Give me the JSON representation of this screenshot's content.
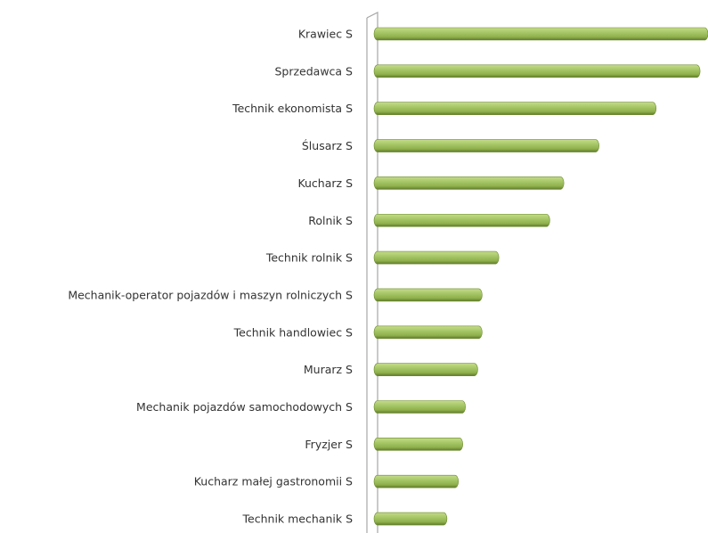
{
  "chart_data": {
    "type": "bar",
    "orientation": "horizontal",
    "categories": [
      "Krawiec S",
      "Sprzedawca S",
      "Technik ekonomista S",
      "Ślusarz S",
      "Kucharz S",
      "Rolnik S",
      "Technik rolnik S",
      "Mechanik-operator pojazdów i maszyn rolniczych S",
      "Technik handlowiec S",
      "Murarz S",
      "Mechanik pojazdów samochodowych S",
      "Fryzjer S",
      "Kucharz małej gastronomii S",
      "Technik mechanik S"
    ],
    "values": [
      380,
      371,
      321,
      256,
      216,
      200,
      142,
      123,
      123,
      118,
      104,
      101,
      96,
      83
    ],
    "color": "#9bbb59",
    "xlim": [
      0,
      380
    ]
  }
}
